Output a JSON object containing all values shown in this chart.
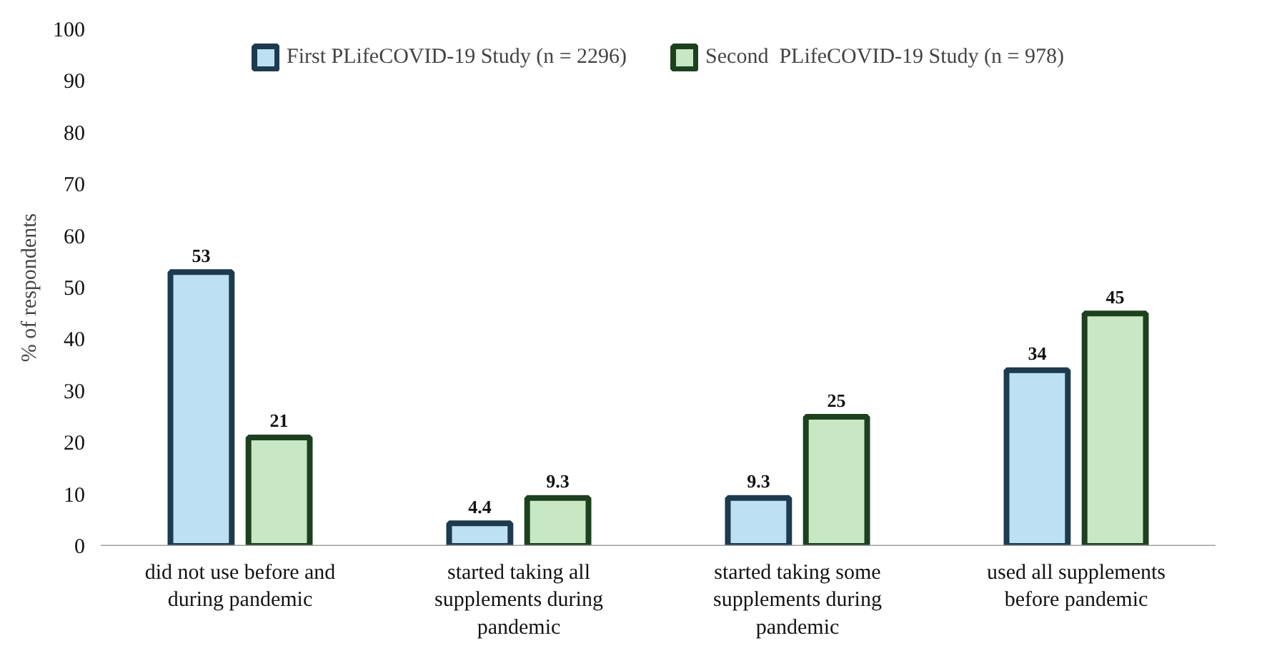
{
  "chart_data": {
    "type": "bar",
    "ylabel": "% of respondents",
    "categories": [
      "did not use before and during pandemic",
      "started taking all supplements during pandemic",
      "started taking some supplements during pandemic",
      "used all supplements before pandemic"
    ],
    "series": [
      {
        "name": "First PLifeCOVID-19 Study (n = 2296)",
        "color": "#bde0f2",
        "values": [
          53,
          4.4,
          9.3,
          34
        ]
      },
      {
        "name": "Second  PLifeCOVID-19 Study (n = 978)",
        "color": "#c8e8c4",
        "values": [
          21,
          9.3,
          25,
          45
        ]
      }
    ],
    "ylim": [
      0,
      100
    ],
    "yticks": [
      0,
      10,
      20,
      30,
      40,
      50,
      60,
      70,
      80,
      90,
      100
    ],
    "grid": false,
    "legend": "top",
    "data_labels": true
  }
}
